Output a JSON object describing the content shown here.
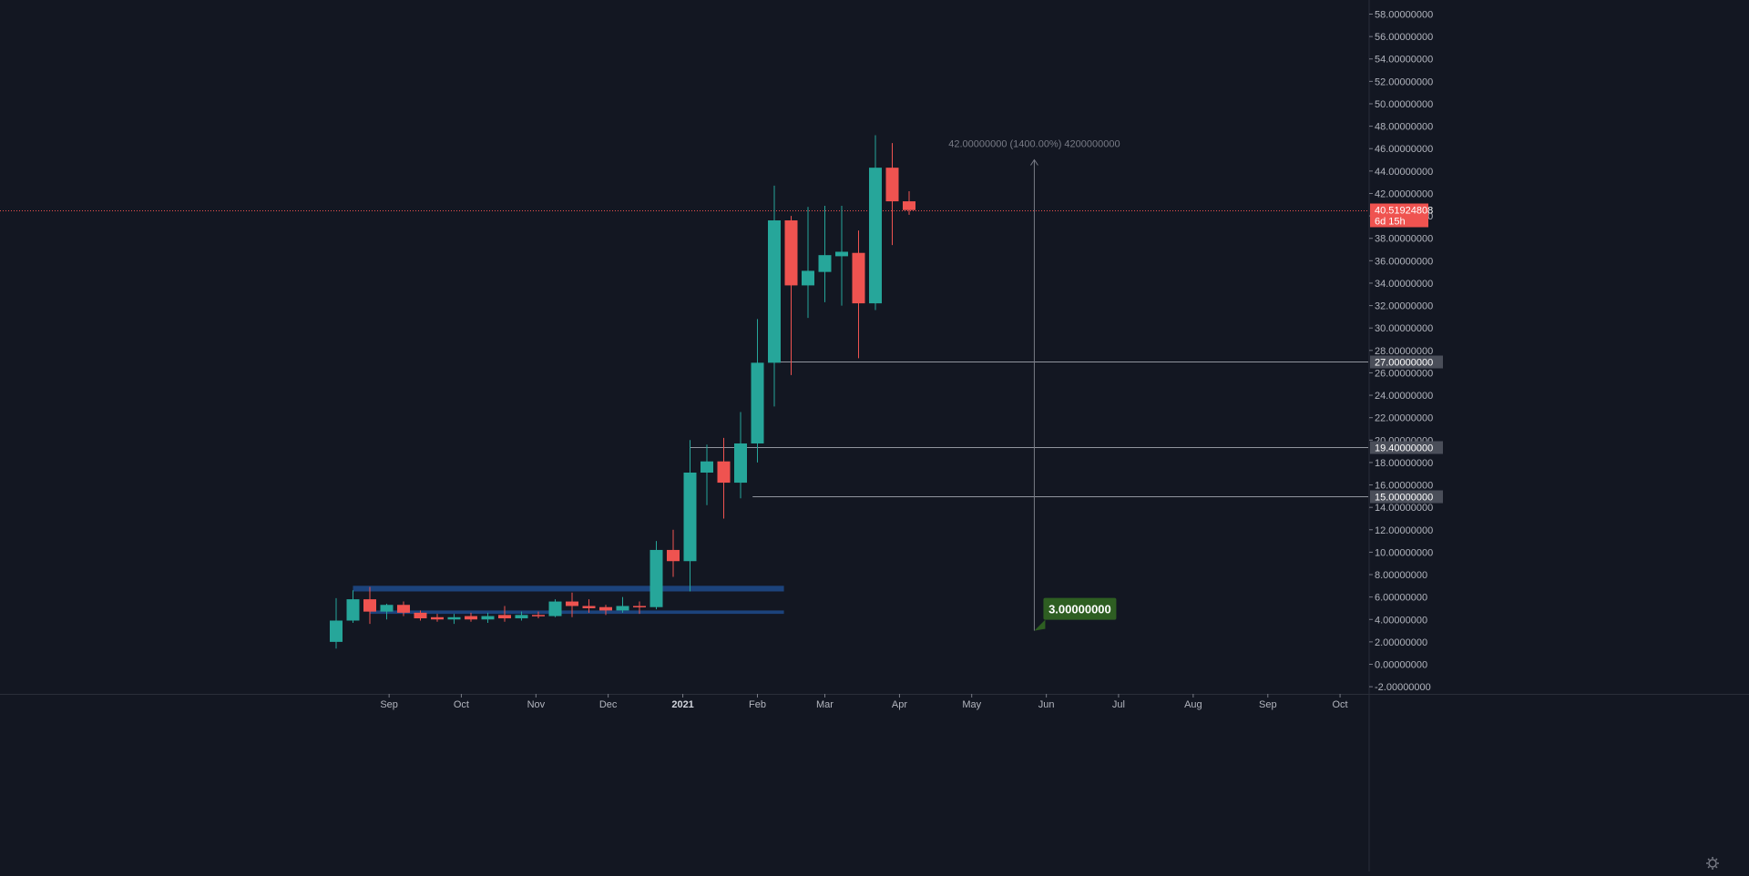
{
  "chart_data": {
    "type": "candlestick",
    "timeframe": "weekly",
    "colors": {
      "background": "#131722",
      "up": "#26a69a",
      "down": "#ef5350",
      "grid": "#1e222d",
      "axis_text": "#b2b5be",
      "level_line": "#b2b5be",
      "range_box": "#1e4b8c",
      "badge_neutral": "#4a4e59",
      "badge_price": "#ef5350",
      "measure_line": "#787b86",
      "target_badge": "#2e5e22"
    },
    "ylim": [
      -2.3,
      59.2
    ],
    "y_ticks": [
      "58.00000000",
      "56.00000000",
      "54.00000000",
      "52.00000000",
      "50.00000000",
      "48.00000000",
      "46.00000000",
      "44.00000000",
      "42.00000000",
      "40.00000000",
      "38.00000000",
      "36.00000000",
      "34.00000000",
      "32.00000000",
      "30.00000000",
      "28.00000000",
      "26.00000000",
      "24.00000000",
      "22.00000000",
      "20.00000000",
      "18.00000000",
      "16.00000000",
      "14.00000000",
      "12.00000000",
      "10.00000000",
      "8.00000000",
      "6.00000000",
      "4.00000000",
      "2.00000000",
      "0.00000000",
      "-2.00000000"
    ],
    "x_ticks": [
      {
        "label": "Sep",
        "date": "2020-09-01",
        "bold": false
      },
      {
        "label": "Oct",
        "date": "2020-10-01",
        "bold": false
      },
      {
        "label": "Nov",
        "date": "2020-11-01",
        "bold": false
      },
      {
        "label": "Dec",
        "date": "2020-12-01",
        "bold": false
      },
      {
        "label": "2021",
        "date": "2021-01-01",
        "bold": true
      },
      {
        "label": "Feb",
        "date": "2021-02-01",
        "bold": false
      },
      {
        "label": "Mar",
        "date": "2021-03-01",
        "bold": false
      },
      {
        "label": "Apr",
        "date": "2021-04-01",
        "bold": false
      },
      {
        "label": "May",
        "date": "2021-05-01",
        "bold": false
      },
      {
        "label": "Jun",
        "date": "2021-06-01",
        "bold": false
      },
      {
        "label": "Jul",
        "date": "2021-07-01",
        "bold": false
      },
      {
        "label": "Aug",
        "date": "2021-08-01",
        "bold": false
      },
      {
        "label": "Sep",
        "date": "2021-09-01",
        "bold": false
      },
      {
        "label": "Oct",
        "date": "2021-10-01",
        "bold": false
      }
    ],
    "candles": [
      {
        "date": "2020-08-10",
        "o": 2.0,
        "h": 5.9,
        "l": 1.4,
        "c": 3.9
      },
      {
        "date": "2020-08-17",
        "o": 3.9,
        "h": 6.6,
        "l": 3.7,
        "c": 5.8
      },
      {
        "date": "2020-08-24",
        "o": 5.8,
        "h": 6.9,
        "l": 3.6,
        "c": 4.7
      },
      {
        "date": "2020-08-31",
        "o": 4.7,
        "h": 5.4,
        "l": 4.0,
        "c": 5.3
      },
      {
        "date": "2020-09-07",
        "o": 5.3,
        "h": 5.6,
        "l": 4.3,
        "c": 4.6
      },
      {
        "date": "2020-09-14",
        "o": 4.6,
        "h": 4.8,
        "l": 3.9,
        "c": 4.1
      },
      {
        "date": "2020-09-21",
        "o": 4.2,
        "h": 4.5,
        "l": 3.8,
        "c": 4.0
      },
      {
        "date": "2020-09-28",
        "o": 4.0,
        "h": 4.5,
        "l": 3.6,
        "c": 4.2
      },
      {
        "date": "2020-10-05",
        "o": 4.3,
        "h": 4.6,
        "l": 3.8,
        "c": 4.0
      },
      {
        "date": "2020-10-12",
        "o": 4.0,
        "h": 4.6,
        "l": 3.7,
        "c": 4.3
      },
      {
        "date": "2020-10-19",
        "o": 4.4,
        "h": 5.2,
        "l": 3.8,
        "c": 4.1
      },
      {
        "date": "2020-10-26",
        "o": 4.1,
        "h": 4.7,
        "l": 3.9,
        "c": 4.4
      },
      {
        "date": "2020-11-02",
        "o": 4.4,
        "h": 4.7,
        "l": 4.1,
        "c": 4.3
      },
      {
        "date": "2020-11-09",
        "o": 4.3,
        "h": 5.8,
        "l": 4.2,
        "c": 5.6
      },
      {
        "date": "2020-11-16",
        "o": 5.6,
        "h": 6.4,
        "l": 4.2,
        "c": 5.2
      },
      {
        "date": "2020-11-23",
        "o": 5.2,
        "h": 5.8,
        "l": 4.6,
        "c": 5.0
      },
      {
        "date": "2020-11-30",
        "o": 5.1,
        "h": 5.3,
        "l": 4.4,
        "c": 4.8
      },
      {
        "date": "2020-12-07",
        "o": 4.8,
        "h": 6.0,
        "l": 4.6,
        "c": 5.2
      },
      {
        "date": "2020-12-14",
        "o": 5.2,
        "h": 5.6,
        "l": 4.5,
        "c": 5.1
      },
      {
        "date": "2020-12-21",
        "o": 5.1,
        "h": 11.0,
        "l": 4.9,
        "c": 10.2
      },
      {
        "date": "2020-12-28",
        "o": 10.2,
        "h": 12.0,
        "l": 7.8,
        "c": 9.2
      },
      {
        "date": "2021-01-04",
        "o": 9.2,
        "h": 20.0,
        "l": 6.5,
        "c": 17.1
      },
      {
        "date": "2021-01-11",
        "o": 17.1,
        "h": 19.6,
        "l": 14.2,
        "c": 18.1
      },
      {
        "date": "2021-01-18",
        "o": 18.1,
        "h": 20.2,
        "l": 13.0,
        "c": 16.2
      },
      {
        "date": "2021-01-25",
        "o": 16.2,
        "h": 22.5,
        "l": 14.8,
        "c": 19.7
      },
      {
        "date": "2021-02-01",
        "o": 19.7,
        "h": 30.8,
        "l": 18.0,
        "c": 26.9
      },
      {
        "date": "2021-02-08",
        "o": 26.9,
        "h": 42.7,
        "l": 23.0,
        "c": 39.6
      },
      {
        "date": "2021-02-15",
        "o": 39.6,
        "h": 40.0,
        "l": 25.8,
        "c": 33.8
      },
      {
        "date": "2021-02-22",
        "o": 33.8,
        "h": 40.8,
        "l": 30.9,
        "c": 35.1
      },
      {
        "date": "2021-03-01",
        "o": 35.0,
        "h": 40.9,
        "l": 32.3,
        "c": 36.5
      },
      {
        "date": "2021-03-08",
        "o": 36.4,
        "h": 40.9,
        "l": 32.0,
        "c": 36.8
      },
      {
        "date": "2021-03-15",
        "o": 36.7,
        "h": 38.7,
        "l": 27.3,
        "c": 32.2
      },
      {
        "date": "2021-03-22",
        "o": 32.2,
        "h": 47.2,
        "l": 31.6,
        "c": 44.3
      },
      {
        "date": "2021-03-29",
        "o": 44.3,
        "h": 46.5,
        "l": 37.4,
        "c": 41.3
      },
      {
        "date": "2021-04-05",
        "o": 41.3,
        "h": 42.2,
        "l": 40.1,
        "c": 40.52
      }
    ],
    "range_boxes": [
      {
        "from": "2020-08-17",
        "to": "2021-02-12",
        "low": 6.5,
        "high": 7.0
      },
      {
        "from": "2020-08-24",
        "to": "2021-02-12",
        "low": 4.5,
        "high": 4.8
      }
    ],
    "horizontal_levels": [
      {
        "value": 27.0,
        "label": "27.00000000",
        "from": "2021-02-10"
      },
      {
        "value": 19.4,
        "label": "19.40000000",
        "from": "2021-01-04"
      },
      {
        "value": 15.0,
        "label": "15.00000000",
        "from": "2021-01-30"
      }
    ],
    "current_price": {
      "value": 40.51924808,
      "label": "40.51924808",
      "countdown": "6d 15h"
    },
    "measure": {
      "date": "2021-05-27",
      "from": 3.0,
      "to": 45.0,
      "label": "42.00000000 (1400.00%) 4200000000",
      "start_label": "3.00000000"
    }
  }
}
